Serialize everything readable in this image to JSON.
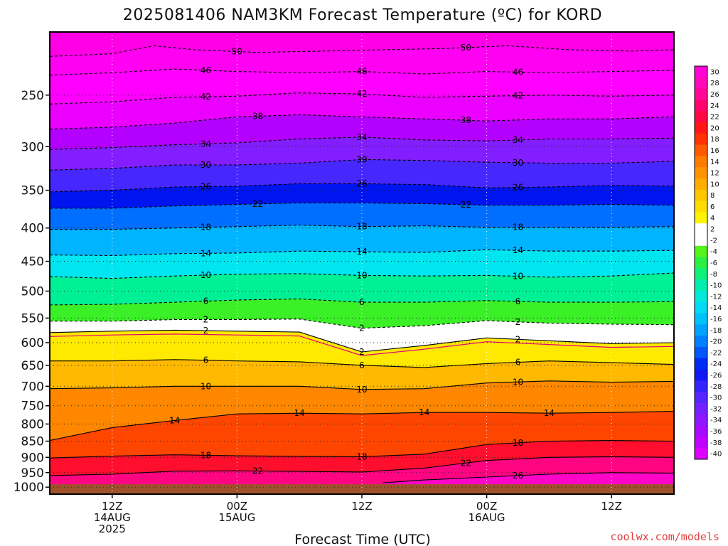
{
  "chart_data": {
    "type": "heatmap",
    "title": "2025081406 NAM3KM Forecast Temperature (ºC) for KORD",
    "xlabel": "Forecast Time (UTC)",
    "ylabel": "",
    "credit": "coolwx.com/models",
    "y_axis": {
      "scale": "log",
      "reversed": true,
      "unit": "hPa",
      "ylim": [
        1025,
        200
      ],
      "ticks": [
        "250",
        "300",
        "350",
        "400",
        "450",
        "500",
        "550",
        "600",
        "650",
        "700",
        "750",
        "800",
        "850",
        "900",
        "950",
        "1000"
      ]
    },
    "x_axis": {
      "unit": "forecast hour",
      "xlim": [
        0,
        60
      ],
      "ticks": [
        {
          "hour": 6,
          "lines": [
            "12Z",
            "14AUG",
            "2025"
          ]
        },
        {
          "hour": 18,
          "lines": [
            "00Z",
            "15AUG"
          ]
        },
        {
          "hour": 30,
          "lines": [
            "12Z"
          ]
        },
        {
          "hour": 42,
          "lines": [
            "00Z",
            "16AUG"
          ]
        },
        {
          "hour": 54,
          "lines": [
            "12Z"
          ]
        }
      ]
    },
    "grid": true,
    "ground_level_hPa": 990,
    "colorbar": {
      "placement": "right",
      "levels": [
        -40,
        -38,
        -36,
        -34,
        -32,
        -30,
        -28,
        -26,
        -24,
        -22,
        -20,
        -18,
        -16,
        -14,
        -12,
        -10,
        -8,
        -6,
        -4,
        -2,
        2,
        4,
        6,
        8,
        10,
        12,
        14,
        16,
        18,
        20,
        22,
        24,
        26,
        28,
        30
      ],
      "labels": [
        "30",
        "28",
        "26",
        "24",
        "22",
        "20",
        "18",
        "16",
        "14",
        "12",
        "10",
        "8",
        "6",
        "4",
        "2",
        "-2",
        "-4",
        "-6",
        "-8",
        "-10",
        "-12",
        "-14",
        "-16",
        "-18",
        "-20",
        "-22",
        "-24",
        "-26",
        "-28",
        "-30",
        "-32",
        "-34",
        "-36",
        "-38",
        "-40"
      ],
      "colors": {
        "freezing_band": "#ffffff",
        "cold_end": "#ff00e6",
        "warm_end": "#ff0ad2",
        "ground": "#a0522d"
      }
    },
    "contours": [
      {
        "temp": -50,
        "labels": [
          "50",
          "50"
        ],
        "points": [
          [
            0,
            218
          ],
          [
            6,
            216
          ],
          [
            10,
            210
          ],
          [
            14,
            213
          ],
          [
            20,
            215
          ],
          [
            26,
            214
          ],
          [
            32,
            213
          ],
          [
            38,
            212
          ],
          [
            44,
            210
          ],
          [
            50,
            213
          ],
          [
            56,
            214
          ],
          [
            60,
            213
          ]
        ]
      },
      {
        "temp": -46,
        "labels": [
          "46",
          "46",
          "46"
        ],
        "points": [
          [
            0,
            233
          ],
          [
            6,
            231
          ],
          [
            12,
            228
          ],
          [
            18,
            230
          ],
          [
            24,
            231
          ],
          [
            30,
            230
          ],
          [
            36,
            232
          ],
          [
            42,
            230
          ],
          [
            48,
            231
          ],
          [
            54,
            230
          ],
          [
            60,
            229
          ]
        ]
      },
      {
        "temp": -42,
        "labels": [
          "42",
          "42",
          "42"
        ],
        "points": [
          [
            0,
            258
          ],
          [
            6,
            256
          ],
          [
            12,
            252
          ],
          [
            18,
            251
          ],
          [
            24,
            248
          ],
          [
            30,
            249
          ],
          [
            36,
            252
          ],
          [
            42,
            251
          ],
          [
            48,
            250
          ],
          [
            54,
            251
          ],
          [
            60,
            250
          ]
        ]
      },
      {
        "temp": -38,
        "labels": [
          "38",
          "38"
        ],
        "points": [
          [
            0,
            282
          ],
          [
            6,
            280
          ],
          [
            12,
            276
          ],
          [
            18,
            270
          ],
          [
            24,
            268
          ],
          [
            30,
            270
          ],
          [
            36,
            272
          ],
          [
            42,
            274
          ],
          [
            48,
            272
          ],
          [
            54,
            272
          ],
          [
            60,
            270
          ]
        ]
      },
      {
        "temp": -34,
        "labels": [
          "34",
          "34",
          "34"
        ],
        "points": [
          [
            0,
            303
          ],
          [
            6,
            301
          ],
          [
            12,
            298
          ],
          [
            18,
            296
          ],
          [
            24,
            292
          ],
          [
            30,
            290
          ],
          [
            36,
            293
          ],
          [
            42,
            294
          ],
          [
            48,
            292
          ],
          [
            54,
            292
          ],
          [
            60,
            291
          ]
        ]
      },
      {
        "temp": -30,
        "labels": [
          "30",
          "30",
          "30"
        ],
        "points": [
          [
            0,
            326
          ],
          [
            6,
            324
          ],
          [
            12,
            320
          ],
          [
            18,
            320
          ],
          [
            24,
            318
          ],
          [
            30,
            314
          ],
          [
            36,
            315
          ],
          [
            42,
            317
          ],
          [
            48,
            318
          ],
          [
            54,
            318
          ],
          [
            60,
            316
          ]
        ]
      },
      {
        "temp": -26,
        "labels": [
          "26",
          "26",
          "26"
        ],
        "points": [
          [
            0,
            352
          ],
          [
            6,
            350
          ],
          [
            12,
            346
          ],
          [
            18,
            345
          ],
          [
            24,
            342
          ],
          [
            30,
            342
          ],
          [
            36,
            343
          ],
          [
            42,
            347
          ],
          [
            48,
            346
          ],
          [
            54,
            344
          ],
          [
            60,
            345
          ]
        ]
      },
      {
        "temp": -22,
        "labels": [
          "22",
          "22"
        ],
        "points": [
          [
            0,
            373
          ],
          [
            6,
            373
          ],
          [
            12,
            370
          ],
          [
            18,
            368
          ],
          [
            24,
            366
          ],
          [
            30,
            366
          ],
          [
            36,
            367
          ],
          [
            42,
            369
          ],
          [
            48,
            369
          ],
          [
            54,
            368
          ],
          [
            60,
            369
          ]
        ]
      },
      {
        "temp": -18,
        "labels": [
          "18",
          "18",
          "18"
        ],
        "points": [
          [
            0,
            402
          ],
          [
            6,
            402
          ],
          [
            12,
            400
          ],
          [
            18,
            398
          ],
          [
            24,
            396
          ],
          [
            30,
            398
          ],
          [
            36,
            397
          ],
          [
            42,
            399
          ],
          [
            48,
            399
          ],
          [
            54,
            399
          ],
          [
            60,
            398
          ]
        ]
      },
      {
        "temp": -14,
        "labels": [
          "14",
          "14",
          "14"
        ],
        "points": [
          [
            0,
            440
          ],
          [
            6,
            441
          ],
          [
            12,
            438
          ],
          [
            18,
            437
          ],
          [
            24,
            434
          ],
          [
            30,
            435
          ],
          [
            36,
            436
          ],
          [
            42,
            432
          ],
          [
            48,
            434
          ],
          [
            54,
            434
          ],
          [
            60,
            433
          ]
        ]
      },
      {
        "temp": -10,
        "labels": [
          "10",
          "10",
          "10"
        ],
        "points": [
          [
            0,
            475
          ],
          [
            6,
            478
          ],
          [
            12,
            474
          ],
          [
            18,
            471
          ],
          [
            24,
            470
          ],
          [
            30,
            473
          ],
          [
            36,
            474
          ],
          [
            42,
            473
          ],
          [
            48,
            476
          ],
          [
            54,
            474
          ],
          [
            60,
            469
          ]
        ]
      },
      {
        "temp": -6,
        "labels": [
          "6",
          "6",
          "6"
        ],
        "points": [
          [
            0,
            525
          ],
          [
            6,
            524
          ],
          [
            12,
            520
          ],
          [
            18,
            516
          ],
          [
            24,
            514
          ],
          [
            30,
            520
          ],
          [
            36,
            520
          ],
          [
            42,
            517
          ],
          [
            48,
            520
          ],
          [
            54,
            520
          ],
          [
            60,
            519
          ]
        ]
      },
      {
        "temp": -2,
        "labels": [
          "2",
          "2",
          "2"
        ],
        "points": [
          [
            0,
            556
          ],
          [
            6,
            556
          ],
          [
            12,
            553
          ],
          [
            18,
            553
          ],
          [
            24,
            552
          ],
          [
            30,
            570
          ],
          [
            36,
            565
          ],
          [
            42,
            555
          ],
          [
            48,
            560
          ],
          [
            54,
            562
          ],
          [
            60,
            563
          ]
        ]
      },
      {
        "temp": 2,
        "labels": [
          "2",
          "2",
          "2"
        ],
        "points": [
          [
            0,
            579
          ],
          [
            6,
            576
          ],
          [
            12,
            574
          ],
          [
            18,
            576
          ],
          [
            24,
            578
          ],
          [
            30,
            620
          ],
          [
            36,
            606
          ],
          [
            42,
            590
          ],
          [
            48,
            596
          ],
          [
            54,
            602
          ],
          [
            60,
            600
          ]
        ]
      },
      {
        "temp": 6,
        "labels": [
          "6",
          "6",
          "6"
        ],
        "points": [
          [
            0,
            640
          ],
          [
            6,
            640
          ],
          [
            12,
            637
          ],
          [
            18,
            640
          ],
          [
            24,
            642
          ],
          [
            30,
            650
          ],
          [
            36,
            655
          ],
          [
            42,
            646
          ],
          [
            48,
            640
          ],
          [
            54,
            644
          ],
          [
            60,
            648
          ]
        ]
      },
      {
        "temp": 10,
        "labels": [
          "10",
          "10",
          "10"
        ],
        "points": [
          [
            0,
            706
          ],
          [
            6,
            704
          ],
          [
            12,
            700
          ],
          [
            18,
            700
          ],
          [
            24,
            700
          ],
          [
            30,
            708
          ],
          [
            36,
            706
          ],
          [
            42,
            692
          ],
          [
            48,
            687
          ],
          [
            54,
            690
          ],
          [
            60,
            688
          ]
        ]
      },
      {
        "temp": 14,
        "labels": [
          "14",
          "14",
          "14",
          "14"
        ],
        "points": [
          [
            0,
            848
          ],
          [
            6,
            810
          ],
          [
            12,
            790
          ],
          [
            18,
            772
          ],
          [
            24,
            770
          ],
          [
            30,
            772
          ],
          [
            36,
            768
          ],
          [
            42,
            768
          ],
          [
            48,
            770
          ],
          [
            54,
            768
          ],
          [
            60,
            765
          ]
        ]
      },
      {
        "temp": 18,
        "labels": [
          "18",
          "18",
          "18"
        ],
        "points": [
          [
            0,
            902
          ],
          [
            6,
            896
          ],
          [
            12,
            892
          ],
          [
            18,
            895
          ],
          [
            24,
            897
          ],
          [
            30,
            898
          ],
          [
            36,
            890
          ],
          [
            42,
            860
          ],
          [
            48,
            850
          ],
          [
            54,
            848
          ],
          [
            60,
            850
          ]
        ]
      },
      {
        "temp": 22,
        "labels": [
          "22",
          "22"
        ],
        "points": [
          [
            0,
            960
          ],
          [
            6,
            955
          ],
          [
            12,
            945
          ],
          [
            18,
            944
          ],
          [
            24,
            946
          ],
          [
            30,
            948
          ],
          [
            36,
            935
          ],
          [
            42,
            910
          ],
          [
            48,
            900
          ],
          [
            54,
            898
          ],
          [
            60,
            900
          ]
        ]
      },
      {
        "temp": 26,
        "labels": [
          "26"
        ],
        "points": [
          [
            32,
            985
          ],
          [
            36,
            975
          ],
          [
            42,
            965
          ],
          [
            48,
            955
          ],
          [
            54,
            950
          ],
          [
            60,
            952
          ]
        ]
      }
    ]
  }
}
